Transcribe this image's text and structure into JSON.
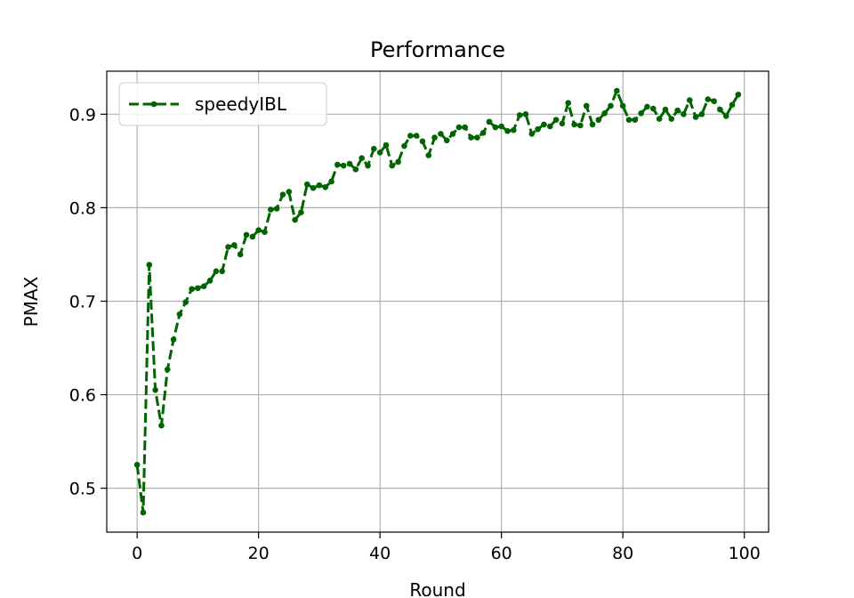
{
  "chart_data": {
    "type": "line",
    "title": "Performance",
    "xlabel": "Round",
    "ylabel": "PMAX",
    "xlim": [
      -5,
      104
    ],
    "ylim": [
      0.453,
      0.946
    ],
    "xticks": [
      0,
      20,
      40,
      60,
      80,
      100
    ],
    "yticks": [
      0.5,
      0.6,
      0.7,
      0.8,
      0.9
    ],
    "xtick_labels": [
      "0",
      "20",
      "40",
      "60",
      "80",
      "100"
    ],
    "ytick_labels": [
      "0.5",
      "0.6",
      "0.7",
      "0.8",
      "0.9"
    ],
    "grid": true,
    "legend_position": "top-left",
    "color": "#006400",
    "series": [
      {
        "name": "speedyIBL",
        "x": [
          0,
          1,
          2,
          3,
          4,
          5,
          6,
          7,
          8,
          9,
          10,
          11,
          12,
          13,
          14,
          15,
          16,
          17,
          18,
          19,
          20,
          21,
          22,
          23,
          24,
          25,
          26,
          27,
          28,
          29,
          30,
          31,
          32,
          33,
          34,
          35,
          36,
          37,
          38,
          39,
          40,
          41,
          42,
          43,
          44,
          45,
          46,
          47,
          48,
          49,
          50,
          51,
          52,
          53,
          54,
          55,
          56,
          57,
          58,
          59,
          60,
          61,
          62,
          63,
          64,
          65,
          66,
          67,
          68,
          69,
          70,
          71,
          72,
          73,
          74,
          75,
          76,
          77,
          78,
          79,
          80,
          81,
          82,
          83,
          84,
          85,
          86,
          87,
          88,
          89,
          90,
          91,
          92,
          93,
          94,
          95,
          96,
          97,
          98,
          99
        ],
        "y": [
          0.525,
          0.474,
          0.739,
          0.605,
          0.567,
          0.627,
          0.659,
          0.686,
          0.699,
          0.713,
          0.714,
          0.716,
          0.722,
          0.732,
          0.732,
          0.758,
          0.76,
          0.75,
          0.771,
          0.769,
          0.776,
          0.774,
          0.798,
          0.799,
          0.814,
          0.817,
          0.787,
          0.795,
          0.825,
          0.821,
          0.824,
          0.822,
          0.828,
          0.846,
          0.845,
          0.847,
          0.841,
          0.853,
          0.845,
          0.863,
          0.859,
          0.867,
          0.845,
          0.849,
          0.866,
          0.877,
          0.877,
          0.871,
          0.856,
          0.875,
          0.879,
          0.872,
          0.879,
          0.886,
          0.886,
          0.875,
          0.875,
          0.88,
          0.892,
          0.886,
          0.887,
          0.882,
          0.883,
          0.899,
          0.9,
          0.879,
          0.884,
          0.889,
          0.887,
          0.894,
          0.89,
          0.912,
          0.889,
          0.888,
          0.909,
          0.889,
          0.894,
          0.901,
          0.909,
          0.925,
          0.909,
          0.894,
          0.894,
          0.901,
          0.908,
          0.906,
          0.895,
          0.905,
          0.895,
          0.904,
          0.9,
          0.915,
          0.897,
          0.9,
          0.916,
          0.914,
          0.905,
          0.898,
          0.91,
          0.921
        ]
      }
    ]
  }
}
